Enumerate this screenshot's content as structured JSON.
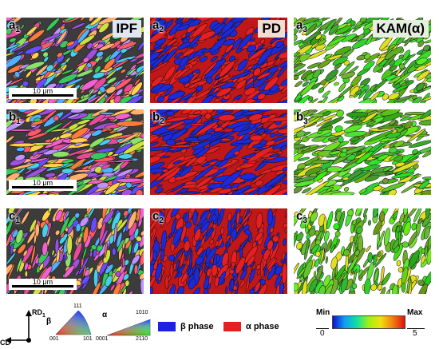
{
  "columns": [
    {
      "header": "IPF",
      "header_bg": "#dfe7f2"
    },
    {
      "header": "PD",
      "header_bg": "#f3ddd1"
    },
    {
      "header": "KAM(α)",
      "header_bg": "#e4efdf"
    }
  ],
  "rows": [
    {
      "letter": "a"
    },
    {
      "letter": "b"
    },
    {
      "letter": "c"
    }
  ],
  "panel_labels": [
    [
      "a",
      "1"
    ],
    [
      "a",
      "2"
    ],
    [
      "a",
      "3"
    ],
    [
      "b",
      "1"
    ],
    [
      "b",
      "2"
    ],
    [
      "b",
      "3"
    ],
    [
      "c",
      "1"
    ],
    [
      "c",
      "2"
    ],
    [
      "c",
      "3"
    ]
  ],
  "scale_bar": "10 μm",
  "axes": {
    "rd": "RD",
    "rd_sub": "1",
    "cd": "CD"
  },
  "ipf_legend": {
    "beta": {
      "symbol": "β",
      "top": "111",
      "left": "001",
      "right": "101"
    },
    "alpha": {
      "symbol": "α",
      "top": "1010",
      "left": "0001",
      "right": "2110"
    }
  },
  "phase_legend": [
    {
      "label": "β phase",
      "color": "#1f1fe6"
    },
    {
      "label": "α phase",
      "color": "#e61f1f"
    }
  ],
  "kam_legend": {
    "min": "Min",
    "min_value": "0",
    "max": "Max",
    "max_value": "5"
  }
}
